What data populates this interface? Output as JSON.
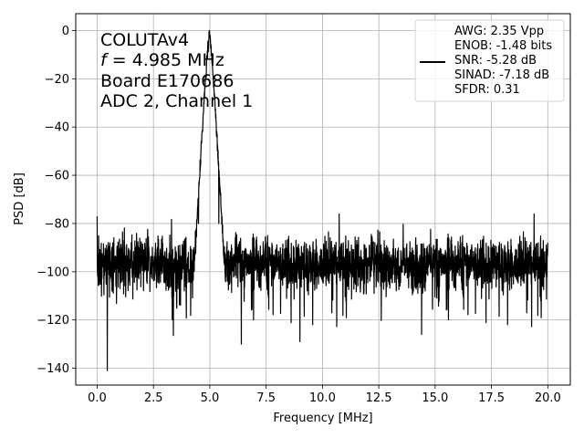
{
  "chart_data": {
    "type": "line",
    "xlabel": "Frequency [MHz]",
    "ylabel": "PSD [dB]",
    "xlim": [
      -0.95,
      21.0
    ],
    "ylim": [
      -147,
      7
    ],
    "xticks": [
      0.0,
      2.5,
      5.0,
      7.5,
      10.0,
      12.5,
      15.0,
      17.5,
      20.0
    ],
    "xtick_labels": [
      "0.0",
      "2.5",
      "5.0",
      "7.5",
      "10.0",
      "12.5",
      "15.0",
      "17.5",
      "20.0"
    ],
    "yticks": [
      0,
      -20,
      -40,
      -60,
      -80,
      -100,
      -120,
      -140
    ],
    "ytick_labels": [
      "0",
      "−20",
      "−40",
      "−60",
      "−80",
      "−100",
      "−120",
      "−140"
    ],
    "grid": true,
    "annotation_lines": [
      "COLUTAv4",
      "f = 4.985 MHz",
      "Board E170686",
      "ADC 2, Channel 1"
    ],
    "annotation_math": {
      "symbol": "f",
      "rest": " = 4.985 MHz"
    },
    "legend_position": "upper-right",
    "legend_lines": [
      "AWG: 2.35 Vpp",
      "ENOB: -1.48 bits",
      "SNR: -5.28 dB",
      "SINAD: -7.18 dB",
      "SFDR: 0.31"
    ],
    "series": [
      {
        "color": "#000000",
        "noise_floor_db": -97,
        "peak": {
          "x": 4.985,
          "y": 0
        },
        "key_points": [
          {
            "x": 0.0,
            "y": -77
          },
          {
            "x": 0.45,
            "y": -141
          },
          {
            "x": 4.5,
            "y": -80
          },
          {
            "x": 4.985,
            "y": 0
          },
          {
            "x": 5.4,
            "y": -80
          },
          {
            "x": 6.4,
            "y": -130
          },
          {
            "x": 9.0,
            "y": -129
          },
          {
            "x": 14.4,
            "y": -126
          },
          {
            "x": 20.0,
            "y": -88
          }
        ]
      }
    ]
  }
}
